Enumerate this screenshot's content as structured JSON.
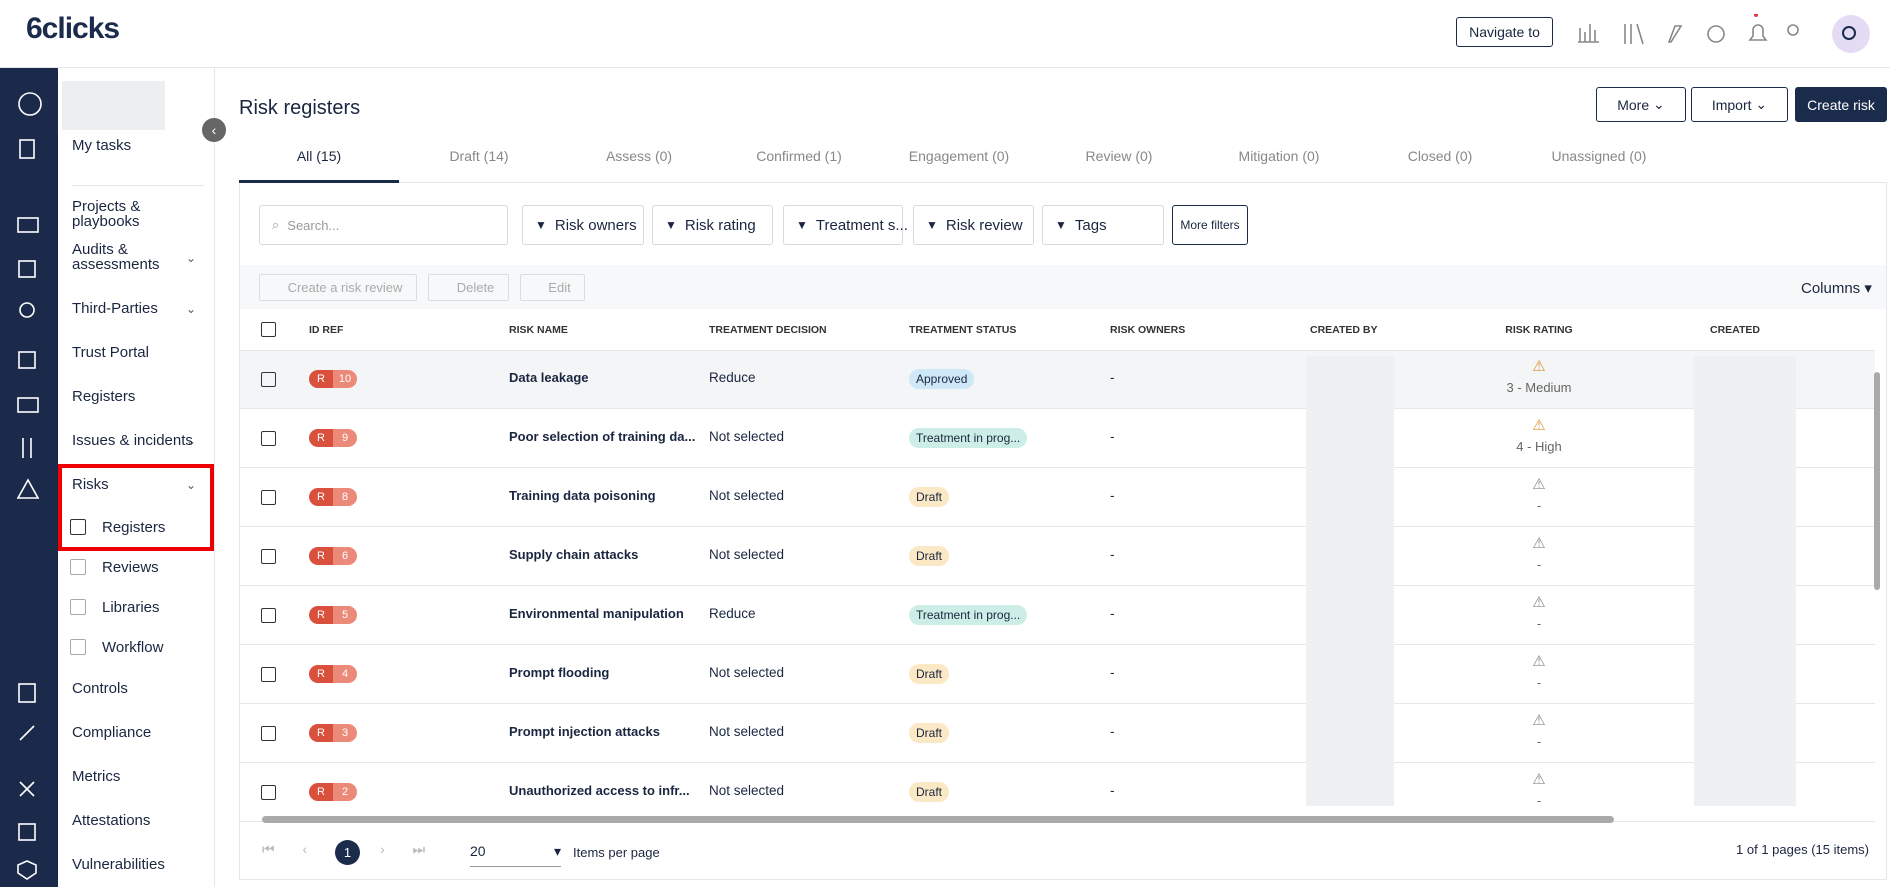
{
  "header": {
    "logo": "6clicks",
    "navigate": "Navigate to"
  },
  "sidebar": {
    "items": [
      "My tasks",
      "Projects & playbooks",
      "Audits & assessments",
      "Third-Parties",
      "Trust Portal",
      "Registers",
      "Issues & incidents",
      "Risks",
      "Controls",
      "Compliance",
      "Metrics",
      "Attestations",
      "Vulnerabilities"
    ],
    "risks_sub": [
      "Registers",
      "Reviews",
      "Libraries",
      "Workflow"
    ]
  },
  "page": {
    "title": "Risk registers",
    "buttons": [
      "More",
      "Import",
      "Create risk"
    ]
  },
  "tabs": [
    "All (15)",
    "Draft (14)",
    "Assess (0)",
    "Confirmed (1)",
    "Engagement (0)",
    "Review (0)",
    "Mitigation (0)",
    "Closed (0)",
    "Unassigned (0)"
  ],
  "filters": {
    "search_placeholder": "Search...",
    "chips": [
      "Risk owners",
      "Risk rating",
      "Treatment s...",
      "Risk review",
      "Tags"
    ],
    "more": "More filters"
  },
  "actions": [
    "Create a risk review",
    "Delete",
    "Edit"
  ],
  "columns_button": "Columns",
  "table": {
    "columns": [
      "ID REF",
      "RISK NAME",
      "TREATMENT DECISION",
      "TREATMENT STATUS",
      "RISK OWNERS",
      "CREATED BY",
      "RISK RATING",
      "CREATED"
    ],
    "rows": [
      {
        "prefix": "R",
        "id": "10",
        "name": "Data leakage",
        "decision": "Reduce",
        "status": "Approved",
        "owners": "-",
        "rating": "3 - Medium"
      },
      {
        "prefix": "R",
        "id": "9",
        "name": "Poor selection of training da...",
        "decision": "Not selected",
        "status": "Treatment in prog...",
        "owners": "-",
        "rating": "4 - High"
      },
      {
        "prefix": "R",
        "id": "8",
        "name": "Training data poisoning",
        "decision": "Not selected",
        "status": "Draft",
        "owners": "-",
        "rating": "-"
      },
      {
        "prefix": "R",
        "id": "6",
        "name": "Supply chain attacks",
        "decision": "Not selected",
        "status": "Draft",
        "owners": "-",
        "rating": "-"
      },
      {
        "prefix": "R",
        "id": "5",
        "name": "Environmental manipulation",
        "decision": "Reduce",
        "status": "Treatment in prog...",
        "owners": "-",
        "rating": "-"
      },
      {
        "prefix": "R",
        "id": "4",
        "name": "Prompt flooding",
        "decision": "Not selected",
        "status": "Draft",
        "owners": "-",
        "rating": "-"
      },
      {
        "prefix": "R",
        "id": "3",
        "name": "Prompt injection attacks",
        "decision": "Not selected",
        "status": "Draft",
        "owners": "-",
        "rating": "-"
      },
      {
        "prefix": "R",
        "id": "2",
        "name": "Unauthorized access to infr...",
        "decision": "Not selected",
        "status": "Draft",
        "owners": "-",
        "rating": "-"
      }
    ]
  },
  "pagination": {
    "page": "1",
    "per_page": "20",
    "per_page_label": "Items per page",
    "summary": "1 of 1 pages (15 items)"
  }
}
